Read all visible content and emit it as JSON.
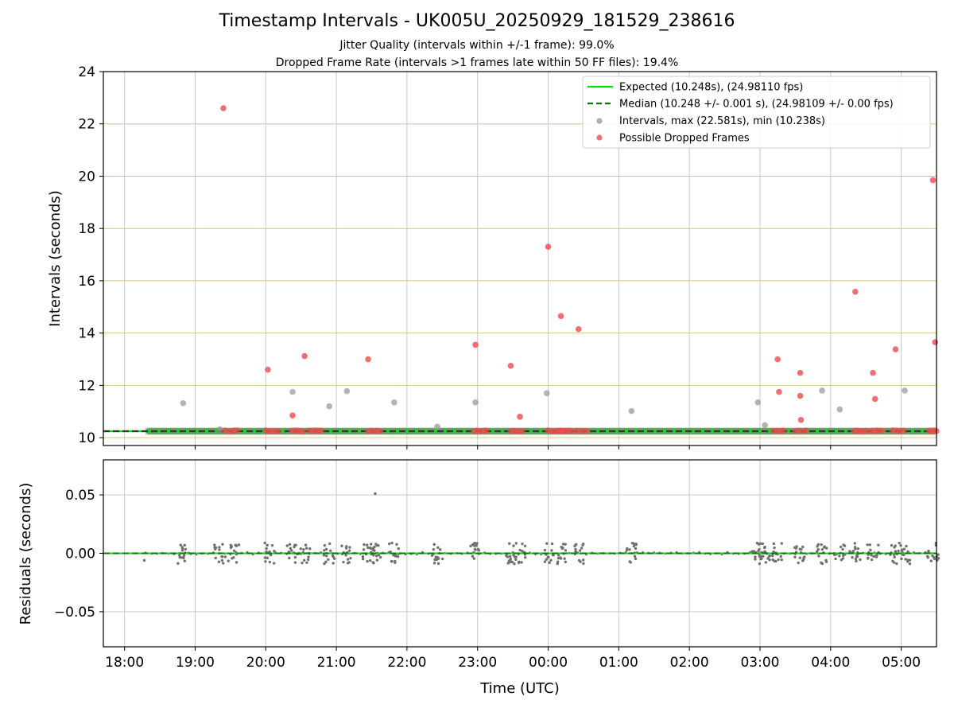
{
  "chart_data": [
    {
      "type": "scatter",
      "title": "Timestamp Intervals - UK005U_20250929_181529_238616",
      "subtitles": [
        "Jitter Quality (intervals within +/-1 frame): 99.0%",
        "Dropped Frame Rate (intervals >1 frames late within 50 FF files): 19.4%"
      ],
      "xlabel": "",
      "ylabel": "Intervals (seconds)",
      "xlim_hours": [
        -0.3,
        11.5
      ],
      "x_unit": "hours since 18:00 UTC",
      "ylim": [
        9.7,
        24
      ],
      "yticks": [
        10,
        12,
        14,
        16,
        18,
        20,
        22,
        24
      ],
      "ytick_labels": [
        "10",
        "12",
        "14",
        "16",
        "18",
        "20",
        "22",
        "24"
      ],
      "hgrid_color": "#d4c483",
      "vgrid_color": "#c8c8c8",
      "expected": 10.248,
      "median": 10.248,
      "legend_position": "top-right",
      "legend": [
        {
          "label": "Expected (10.248s), (24.98110 fps)",
          "kind": "line",
          "color": "#00e000",
          "dash": "solid"
        },
        {
          "label": "Median (10.248 +/- 0.001 s), (24.98109 +/- 0.00 fps)",
          "kind": "line",
          "color": "#007a00",
          "dash": "dashed"
        },
        {
          "label": "Intervals, max (22.581s), min (10.238s)",
          "kind": "dot",
          "color": "#9a9a9a"
        },
        {
          "label": "Possible Dropped Frames",
          "kind": "dot",
          "color": "#f04a4a"
        }
      ],
      "band_segments": [
        {
          "x0": 0.3,
          "x1": 11.5
        }
      ],
      "intervals_color": "#9a9a9a",
      "dropped_color": "#f04a4a",
      "intervals": [
        {
          "x": 0.83,
          "y": 11.32
        },
        {
          "x": 1.35,
          "y": 10.32
        },
        {
          "x": 2.38,
          "y": 11.75
        },
        {
          "x": 2.9,
          "y": 11.2
        },
        {
          "x": 3.15,
          "y": 11.78
        },
        {
          "x": 3.82,
          "y": 11.35
        },
        {
          "x": 4.43,
          "y": 10.42
        },
        {
          "x": 4.97,
          "y": 11.35
        },
        {
          "x": 5.98,
          "y": 11.7
        },
        {
          "x": 7.18,
          "y": 11.02
        },
        {
          "x": 8.97,
          "y": 11.35
        },
        {
          "x": 9.07,
          "y": 10.48
        },
        {
          "x": 9.88,
          "y": 11.8
        },
        {
          "x": 10.13,
          "y": 11.08
        },
        {
          "x": 11.05,
          "y": 11.8
        }
      ],
      "dropped_clusters": [
        {
          "x0": 1.42,
          "x1": 1.6,
          "y": 10.26
        },
        {
          "x0": 2.0,
          "x1": 2.18,
          "y": 10.26
        },
        {
          "x0": 2.37,
          "x1": 2.53,
          "y": 10.26
        },
        {
          "x0": 2.62,
          "x1": 2.78,
          "y": 10.26
        },
        {
          "x0": 3.45,
          "x1": 3.62,
          "y": 10.26
        },
        {
          "x0": 4.95,
          "x1": 5.12,
          "y": 10.26
        },
        {
          "x0": 5.47,
          "x1": 5.63,
          "y": 10.26
        },
        {
          "x0": 6.0,
          "x1": 6.18,
          "y": 10.26
        },
        {
          "x0": 6.17,
          "x1": 6.33,
          "y": 10.26
        },
        {
          "x0": 6.4,
          "x1": 6.55,
          "y": 10.26
        },
        {
          "x0": 9.2,
          "x1": 9.33,
          "y": 10.26
        },
        {
          "x0": 9.5,
          "x1": 9.65,
          "y": 10.26
        },
        {
          "x0": 10.33,
          "x1": 10.5,
          "y": 10.26
        },
        {
          "x0": 10.57,
          "x1": 10.73,
          "y": 10.26
        },
        {
          "x0": 10.88,
          "x1": 11.03,
          "y": 10.26
        },
        {
          "x0": 11.4,
          "x1": 11.5,
          "y": 10.26
        }
      ],
      "dropped": [
        {
          "x": 1.4,
          "y": 22.6
        },
        {
          "x": 2.03,
          "y": 12.6
        },
        {
          "x": 2.38,
          "y": 10.85
        },
        {
          "x": 2.55,
          "y": 13.12
        },
        {
          "x": 3.45,
          "y": 13.0
        },
        {
          "x": 4.97,
          "y": 13.55
        },
        {
          "x": 5.47,
          "y": 12.75
        },
        {
          "x": 5.6,
          "y": 10.8
        },
        {
          "x": 6.0,
          "y": 17.3
        },
        {
          "x": 6.18,
          "y": 14.65
        },
        {
          "x": 6.43,
          "y": 14.15
        },
        {
          "x": 9.25,
          "y": 13.0
        },
        {
          "x": 9.27,
          "y": 11.75
        },
        {
          "x": 9.57,
          "y": 12.48
        },
        {
          "x": 9.57,
          "y": 11.6
        },
        {
          "x": 9.58,
          "y": 10.68
        },
        {
          "x": 10.35,
          "y": 15.58
        },
        {
          "x": 10.6,
          "y": 12.48
        },
        {
          "x": 10.63,
          "y": 11.48
        },
        {
          "x": 10.92,
          "y": 13.38
        },
        {
          "x": 11.45,
          "y": 19.85
        },
        {
          "x": 11.48,
          "y": 13.65
        }
      ]
    },
    {
      "type": "scatter",
      "title": "",
      "xlabel": "Time (UTC)",
      "ylabel": "Residuals (seconds)",
      "xlim_hours": [
        -0.3,
        11.5
      ],
      "ylim": [
        -0.08,
        0.08
      ],
      "yticks": [
        -0.05,
        0,
        0.05
      ],
      "ytick_labels": [
        "−0.05",
        "0.00",
        "0.05"
      ],
      "xticks_hours": [
        0,
        1,
        2,
        3,
        4,
        5,
        6,
        7,
        8,
        9,
        10,
        11
      ],
      "xtick_labels": [
        "18:00",
        "19:00",
        "20:00",
        "21:00",
        "22:00",
        "23:00",
        "00:00",
        "01:00",
        "02:00",
        "03:00",
        "04:00",
        "05:00"
      ],
      "grid_color": "#c8c8c8",
      "zero_line_color": "#00e000",
      "residual_color": "#707070",
      "outliers": [
        {
          "x": 3.55,
          "y": 0.051
        },
        {
          "x": 0.28,
          "y": -0.006
        }
      ],
      "cluster_centers_hours": [
        0.83,
        1.35,
        1.55,
        2.05,
        2.38,
        2.55,
        2.9,
        3.15,
        3.45,
        3.55,
        3.82,
        4.43,
        4.97,
        5.47,
        5.6,
        6.0,
        6.18,
        6.43,
        7.18,
        8.97,
        9.07,
        9.25,
        9.57,
        9.88,
        10.13,
        10.35,
        10.6,
        10.92,
        11.05,
        11.45
      ]
    }
  ]
}
